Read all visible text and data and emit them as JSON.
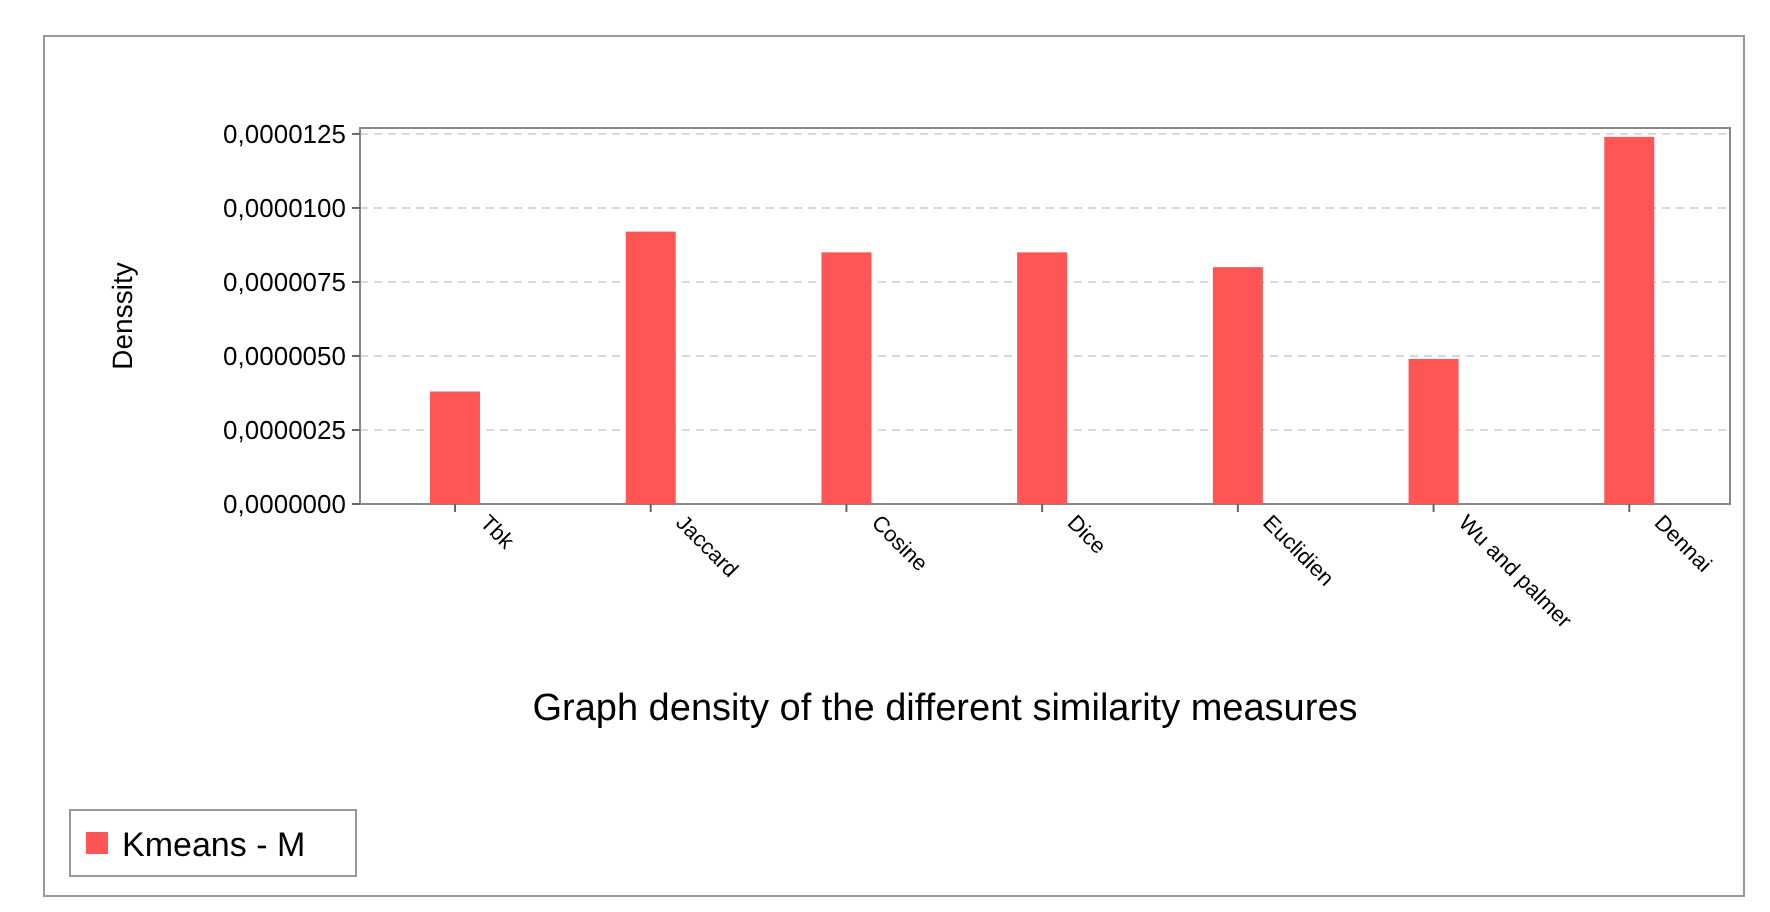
{
  "chart_data": {
    "type": "bar",
    "xlabel": "Graph density of the different similarity measures",
    "ylabel": "Denssity",
    "categories": [
      "Tbk",
      "Jaccard",
      "Cosine",
      "Dice",
      "Euclidien",
      "Wu and palmer",
      "Dennai"
    ],
    "series": [
      {
        "name": "Kmeans - M",
        "color": "#ff5555",
        "values": [
          3.8e-06,
          9.2e-06,
          8.5e-06,
          8.5e-06,
          8e-06,
          4.9e-06,
          1.24e-05
        ]
      }
    ],
    "ylim": [
      0,
      1.27e-05
    ],
    "yticks": [
      {
        "value": 0,
        "label": "0,0000000"
      },
      {
        "value": 2.5e-06,
        "label": "0,0000025"
      },
      {
        "value": 5e-06,
        "label": "0,0000050"
      },
      {
        "value": 7.5e-06,
        "label": "0,0000075"
      },
      {
        "value": 1e-05,
        "label": "0,0000100"
      },
      {
        "value": 1.25e-05,
        "label": "0,0000125"
      }
    ],
    "grid": "y",
    "legend": "bottom left"
  }
}
